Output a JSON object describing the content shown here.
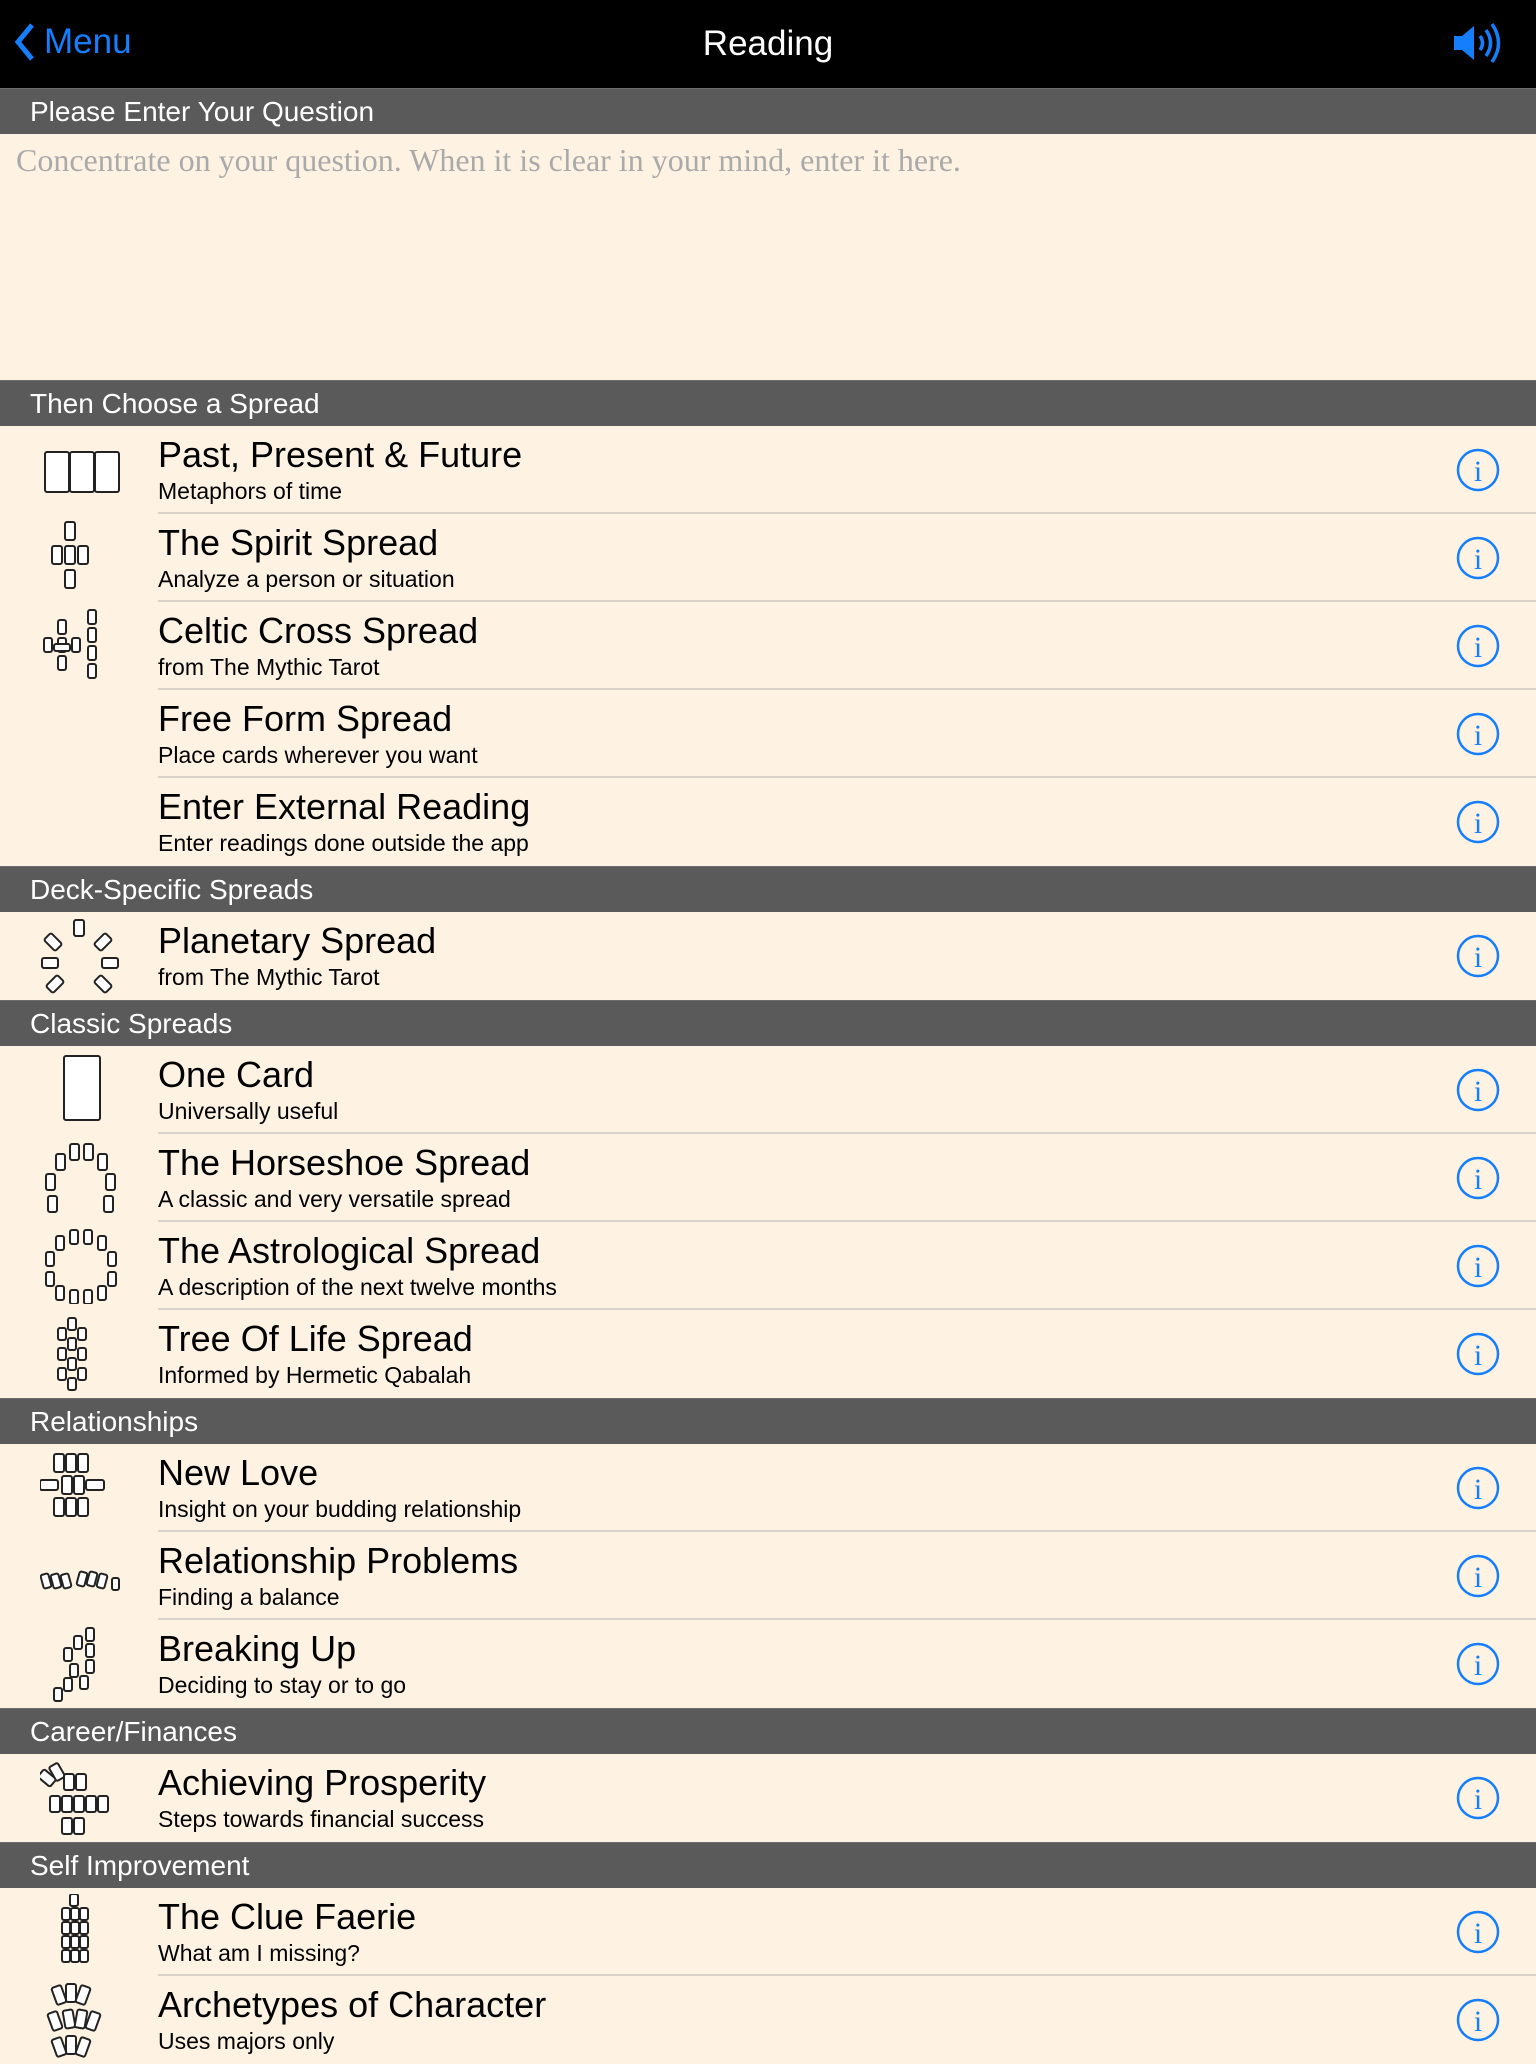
{
  "nav": {
    "back_label": "Menu",
    "title": "Reading",
    "back_icon": "chevron-left-icon",
    "sound_icon": "speaker-icon"
  },
  "accent": "#147efb",
  "question": {
    "header": "Please Enter Your Question",
    "placeholder": "Concentrate on your question. When it is clear in your mind, enter it here.",
    "value": ""
  },
  "sections": [
    {
      "header": "Then Choose a Spread",
      "items": [
        {
          "title": "Past, Present & Future",
          "subtitle": "Metaphors of time",
          "icon": "three-card"
        },
        {
          "title": "The Spirit Spread",
          "subtitle": "Analyze a person or situation",
          "icon": "spirit"
        },
        {
          "title": "Celtic Cross Spread",
          "subtitle": "from The Mythic Tarot",
          "icon": "celtic"
        },
        {
          "title": "Free Form Spread",
          "subtitle": "Place cards wherever you want",
          "icon": ""
        },
        {
          "title": "Enter External Reading",
          "subtitle": "Enter readings done outside the app",
          "icon": ""
        }
      ]
    },
    {
      "header": "Deck-Specific Spreads",
      "items": [
        {
          "title": "Planetary Spread",
          "subtitle": "from The Mythic Tarot",
          "icon": "planetary"
        }
      ]
    },
    {
      "header": "Classic Spreads",
      "items": [
        {
          "title": "One Card",
          "subtitle": "Universally useful",
          "icon": "one-card"
        },
        {
          "title": "The Horseshoe Spread",
          "subtitle": "A classic and very versatile spread",
          "icon": "horseshoe"
        },
        {
          "title": "The Astrological Spread",
          "subtitle": "A description of the next twelve months",
          "icon": "astrological"
        },
        {
          "title": "Tree Of Life Spread",
          "subtitle": "Informed by Hermetic Qabalah",
          "icon": "tree"
        }
      ]
    },
    {
      "header": "Relationships",
      "items": [
        {
          "title": "New Love",
          "subtitle": "Insight on your budding relationship",
          "icon": "new-love"
        },
        {
          "title": "Relationship Problems",
          "subtitle": "Finding a balance",
          "icon": "problems"
        },
        {
          "title": "Breaking Up",
          "subtitle": "Deciding to stay or to go",
          "icon": "breaking-up"
        }
      ]
    },
    {
      "header": "Career/Finances",
      "items": [
        {
          "title": "Achieving Prosperity",
          "subtitle": "Steps towards financial success",
          "icon": "prosperity"
        }
      ]
    },
    {
      "header": "Self Improvement",
      "items": [
        {
          "title": "The Clue Faerie",
          "subtitle": "What am I missing?",
          "icon": "clue"
        },
        {
          "title": "Archetypes of Character",
          "subtitle": "Uses majors only",
          "icon": "archetypes"
        }
      ]
    }
  ]
}
